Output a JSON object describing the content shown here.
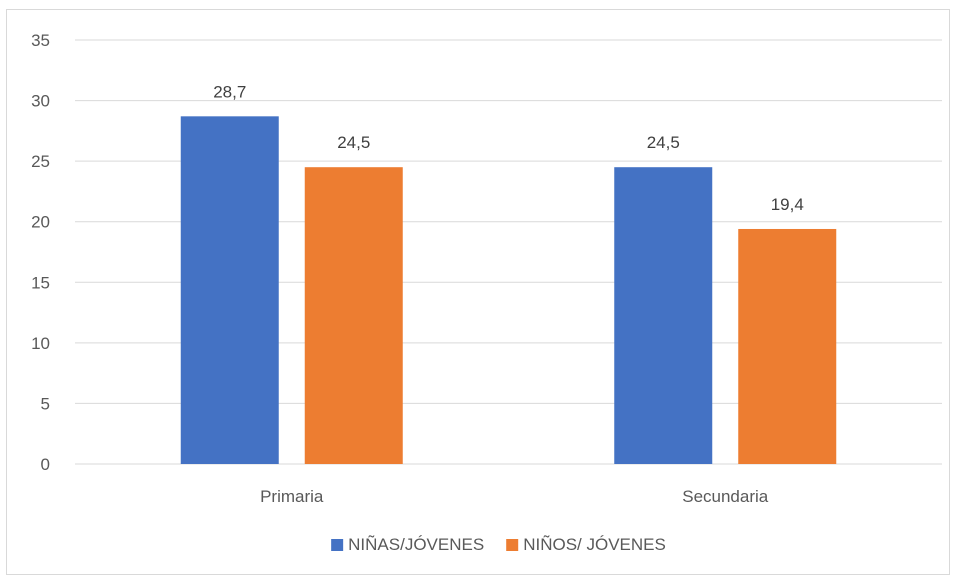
{
  "chart_data": {
    "type": "bar",
    "categories": [
      "Primaria",
      "Secundaria"
    ],
    "series": [
      {
        "name": "NIÑAS/JÓVENES",
        "values": [
          28.7,
          24.5
        ],
        "labels": [
          "28,7",
          "24,5"
        ],
        "color": "#4472C4"
      },
      {
        "name": "NIÑOS/ JÓVENES",
        "values": [
          24.5,
          19.4
        ],
        "labels": [
          "24,5",
          "19,4"
        ],
        "color": "#ED7D31"
      }
    ],
    "ylim": [
      0,
      35
    ],
    "yticks": [
      0,
      5,
      10,
      15,
      20,
      25,
      30,
      35
    ],
    "grid": true,
    "legend": "bottom",
    "gridline_color": "#d9d9d9"
  }
}
